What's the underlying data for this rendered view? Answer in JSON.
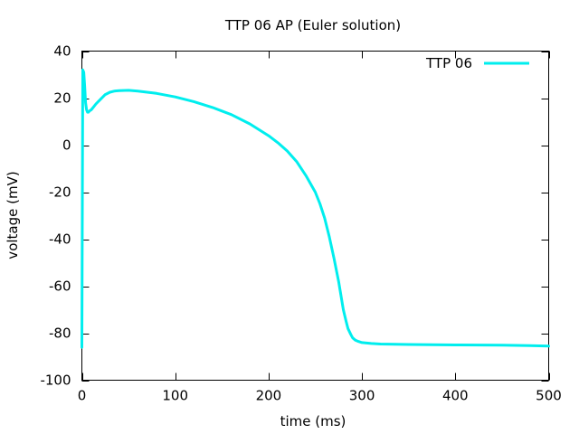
{
  "chart_data": {
    "type": "line",
    "title": "TTP 06 AP (Euler solution)",
    "xlabel": "time (ms)",
    "ylabel": "voltage (mV)",
    "xlim": [
      0,
      500
    ],
    "ylim": [
      -100,
      40
    ],
    "x_ticks": [
      0,
      100,
      200,
      300,
      400,
      500
    ],
    "y_ticks": [
      -100,
      -80,
      -60,
      -40,
      -20,
      0,
      20,
      40
    ],
    "grid": false,
    "legend_position": "top-right",
    "series": [
      {
        "name": "TTP 06",
        "color": "#00eeee",
        "x": [
          0,
          1,
          2,
          3,
          4,
          5,
          6,
          7,
          8,
          10,
          12,
          15,
          20,
          25,
          30,
          35,
          40,
          50,
          60,
          80,
          100,
          120,
          140,
          150,
          160,
          180,
          200,
          210,
          220,
          230,
          240,
          250,
          255,
          260,
          265,
          270,
          275,
          280,
          283,
          285,
          288,
          290,
          293,
          296,
          300,
          305,
          310,
          320,
          350,
          400,
          450,
          480,
          500
        ],
        "y": [
          -86,
          32,
          31,
          25,
          18,
          15,
          14,
          14,
          14.5,
          15,
          16,
          17.5,
          19.5,
          21.5,
          22.5,
          23,
          23.2,
          23.3,
          23,
          22,
          20.5,
          18.5,
          16,
          14.5,
          13,
          9,
          4,
          1,
          -2.5,
          -7,
          -13,
          -20,
          -25,
          -31,
          -39,
          -48,
          -58,
          -70,
          -75,
          -78,
          -80.5,
          -82,
          -83,
          -83.5,
          -84,
          -84.2,
          -84.4,
          -84.6,
          -84.8,
          -85,
          -85.1,
          -85.3,
          -85.5
        ]
      }
    ]
  }
}
